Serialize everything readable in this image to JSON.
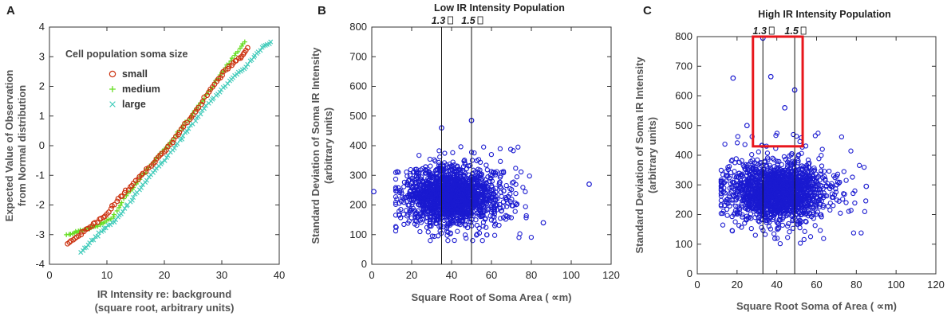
{
  "colors": {
    "axis": "#333333",
    "small": "#cc3311",
    "medium": "#66dd22",
    "large": "#44ccbb",
    "blue": "#1a1ad0",
    "highlight": "#e8161c"
  },
  "chart_data": [
    {
      "type": "scatter",
      "panel_label": "A",
      "title": "",
      "xlabel_line1": "IR Intensity re: background",
      "xlabel_line2": "(square root, arbitrary units)",
      "ylabel_line1": "Expected  Value of Observation",
      "ylabel_line2": "from Normal distribution",
      "xlim": [
        0,
        40
      ],
      "ylim": [
        -4,
        4
      ],
      "xticks": [
        "0",
        "10",
        "20",
        "30",
        "40"
      ],
      "yticks": [
        "-4",
        "-3",
        "-2",
        "-1",
        "0",
        "1",
        "2",
        "3",
        "4"
      ],
      "legend_title": "Cell population soma size",
      "series": [
        {
          "name": "small",
          "marker": "circle",
          "points": [
            [
              3.2,
              -3.3
            ],
            [
              8.0,
              -2.6
            ],
            [
              10,
              -2.3
            ],
            [
              12,
              -1.8
            ],
            [
              14,
              -1.4
            ],
            [
              16,
              -1.0
            ],
            [
              18,
              -0.6
            ],
            [
              20,
              -0.2
            ],
            [
              22,
              0.3
            ],
            [
              24,
              0.8
            ],
            [
              26,
              1.3
            ],
            [
              28,
              1.9
            ],
            [
              30,
              2.4
            ],
            [
              32,
              2.8
            ],
            [
              33.5,
              3.0
            ],
            [
              34.5,
              3.3
            ]
          ]
        },
        {
          "name": "medium",
          "marker": "plus",
          "points": [
            [
              3,
              -3.0
            ],
            [
              8.5,
              -2.7
            ],
            [
              11,
              -2.4
            ],
            [
              13,
              -1.8
            ],
            [
              15,
              -1.3
            ],
            [
              17,
              -0.8
            ],
            [
              19,
              -0.35
            ],
            [
              21,
              0.1
            ],
            [
              23,
              0.6
            ],
            [
              25,
              1.1
            ],
            [
              27,
              1.6
            ],
            [
              29,
              2.2
            ],
            [
              31,
              2.7
            ],
            [
              32.5,
              3.1
            ],
            [
              34,
              3.5
            ]
          ]
        },
        {
          "name": "large",
          "marker": "x",
          "points": [
            [
              5.5,
              -3.6
            ],
            [
              9,
              -2.9
            ],
            [
              11.5,
              -2.5
            ],
            [
              14,
              -1.9
            ],
            [
              16,
              -1.4
            ],
            [
              18,
              -0.9
            ],
            [
              20,
              -0.5
            ],
            [
              22,
              0.0
            ],
            [
              24,
              0.5
            ],
            [
              26,
              1.0
            ],
            [
              28,
              1.5
            ],
            [
              30,
              1.9
            ],
            [
              32,
              2.3
            ],
            [
              34,
              2.6
            ],
            [
              35.5,
              3.0
            ],
            [
              37,
              3.3
            ],
            [
              38.5,
              3.5
            ]
          ]
        }
      ]
    },
    {
      "type": "scatter",
      "panel_label": "B",
      "title": "Low IR Intensity Population",
      "xlabel": "Square Root of Soma    Area ( ∝m)",
      "ylabel_line1": "Standard Deviation of  Soma IR Intensity",
      "ylabel_line2": "(arbitrary units)",
      "xlim": [
        0,
        120
      ],
      "ylim": [
        0,
        800
      ],
      "xticks": [
        "0",
        "20",
        "40",
        "60",
        "80",
        "100",
        "120"
      ],
      "yticks": [
        "0",
        "100",
        "200",
        "300",
        "400",
        "500",
        "600",
        "700",
        "800"
      ],
      "vlines": [
        {
          "x": 35,
          "label": "1.3"
        },
        {
          "x": 50,
          "label": "1.5"
        }
      ],
      "cluster": {
        "center": [
          40,
          230
        ],
        "x_range": [
          12,
          80
        ],
        "y_range": [
          80,
          400
        ]
      },
      "outliers": [
        [
          109,
          270
        ],
        [
          86,
          140
        ],
        [
          50,
          485
        ],
        [
          35,
          460
        ],
        [
          1,
          245
        ]
      ]
    },
    {
      "type": "scatter",
      "panel_label": "C",
      "title": "High IR Intensity Population",
      "xlabel": "Square Root Soma of    Area ( ∝m)",
      "ylabel_line1": "Standard Deviation of Soma IR Intensity",
      "ylabel_line2": "(arbitrary units)",
      "xlim": [
        0,
        120
      ],
      "ylim": [
        0,
        800
      ],
      "xticks": [
        "0",
        "20",
        "40",
        "60",
        "80",
        "100",
        "120"
      ],
      "yticks": [
        "0",
        "100",
        "200",
        "300",
        "400",
        "500",
        "600",
        "700",
        "800"
      ],
      "vlines": [
        {
          "x": 33,
          "label": "1.3"
        },
        {
          "x": 49,
          "label": "1.5"
        }
      ],
      "highlight_box": {
        "x": [
          28,
          53
        ],
        "y": [
          430,
          800
        ]
      },
      "cluster": {
        "center": [
          40,
          275
        ],
        "x_range": [
          12,
          85
        ],
        "y_range": [
          100,
          480
        ]
      },
      "outliers": [
        [
          18,
          660
        ],
        [
          37,
          665
        ],
        [
          33,
          795
        ],
        [
          49,
          620
        ],
        [
          85,
          295
        ],
        [
          44,
          560
        ],
        [
          25,
          500
        ]
      ]
    }
  ]
}
